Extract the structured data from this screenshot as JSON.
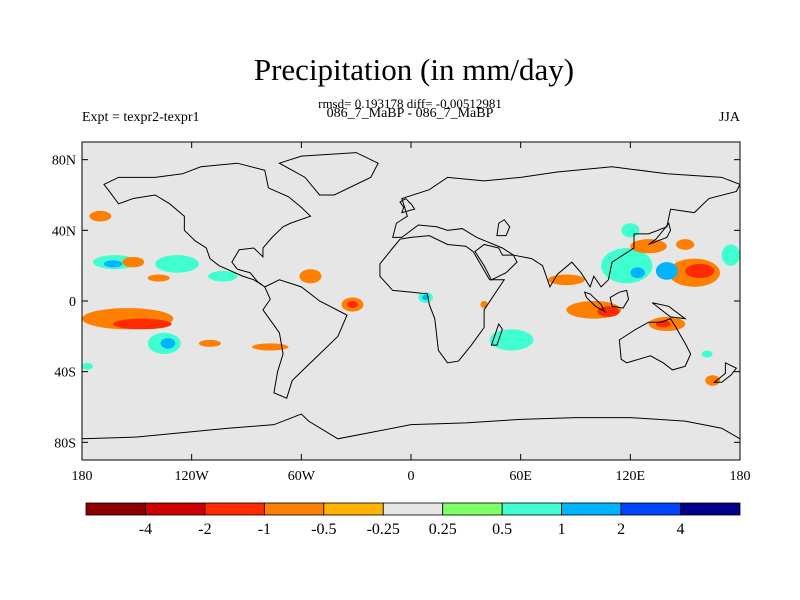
{
  "chart_data": {
    "type": "heatmap",
    "title": "Precipitation (in mm/day)",
    "subtitle": "rmsd= 0.193178 diff= -0.00512981",
    "center_string": "086_7_MaBP - 086_7_MaBP",
    "left_string": "Expt = texpr2-texpr1",
    "right_string": "JJA",
    "x_ticks": [
      "180",
      "120W",
      "60W",
      "0",
      "60E",
      "120E",
      "180"
    ],
    "y_ticks": [
      "80N",
      "40N",
      "0",
      "40S",
      "80S"
    ],
    "lon_range": [
      -180,
      180
    ],
    "lat_range": [
      -90,
      90
    ],
    "background_color": "#e6e6e6",
    "colorbar": {
      "levels": [
        "-4",
        "-2",
        "-1",
        "-0.5",
        "-0.25",
        "0.25",
        "0.5",
        "1",
        "2",
        "4"
      ],
      "colors": [
        "#8b0000",
        "#cc0000",
        "#ff2a00",
        "#ff7f00",
        "#ffb200",
        "#e6e6e6",
        "#7fff66",
        "#3fffd0",
        "#00b4ff",
        "#0044ff",
        "#000088"
      ]
    },
    "anomaly_regions": [
      {
        "lon": -170,
        "lat": 48,
        "rx": 6,
        "ry": 3,
        "level": "-0.5"
      },
      {
        "lon": -162,
        "lat": 22,
        "rx": 12,
        "ry": 4,
        "level": "0.5"
      },
      {
        "lon": -163,
        "lat": 21,
        "rx": 5,
        "ry": 2,
        "level": "1"
      },
      {
        "lon": -152,
        "lat": 22,
        "rx": 6,
        "ry": 3,
        "level": "-0.5"
      },
      {
        "lon": -128,
        "lat": 21,
        "rx": 12,
        "ry": 5,
        "level": "0.5"
      },
      {
        "lon": -103,
        "lat": 14,
        "rx": 8,
        "ry": 3,
        "level": "0.5"
      },
      {
        "lon": -138,
        "lat": 13,
        "rx": 6,
        "ry": 2,
        "level": "-0.5"
      },
      {
        "lon": -155,
        "lat": -10,
        "rx": 25,
        "ry": 6,
        "level": "-0.5"
      },
      {
        "lon": -147,
        "lat": -13,
        "rx": 16,
        "ry": 3,
        "level": "-1"
      },
      {
        "lon": -135,
        "lat": -24,
        "rx": 9,
        "ry": 6,
        "level": "0.5"
      },
      {
        "lon": -133,
        "lat": -24,
        "rx": 4,
        "ry": 3,
        "level": "1"
      },
      {
        "lon": -110,
        "lat": -24,
        "rx": 6,
        "ry": 2,
        "level": "-0.5"
      },
      {
        "lon": -77,
        "lat": -26,
        "rx": 10,
        "ry": 2,
        "level": "-0.5"
      },
      {
        "lon": -55,
        "lat": 14,
        "rx": 6,
        "ry": 4,
        "level": "-0.5"
      },
      {
        "lon": -32,
        "lat": -2,
        "rx": 6,
        "ry": 4,
        "level": "-0.5"
      },
      {
        "lon": -32,
        "lat": -2,
        "rx": 3,
        "ry": 2,
        "level": "-1"
      },
      {
        "lon": 8,
        "lat": 2,
        "rx": 4,
        "ry": 3,
        "level": "0.5"
      },
      {
        "lon": 8,
        "lat": 2,
        "rx": 2,
        "ry": 1.5,
        "level": "1"
      },
      {
        "lon": 40,
        "lat": -2,
        "rx": 2,
        "ry": 2,
        "level": "-0.5"
      },
      {
        "lon": 55,
        "lat": -22,
        "rx": 12,
        "ry": 6,
        "level": "0.5"
      },
      {
        "lon": 100,
        "lat": -5,
        "rx": 15,
        "ry": 5,
        "level": "-0.5"
      },
      {
        "lon": 108,
        "lat": -6,
        "rx": 6,
        "ry": 3,
        "level": "-1"
      },
      {
        "lon": 85,
        "lat": 12,
        "rx": 10,
        "ry": 3,
        "level": "-0.5"
      },
      {
        "lon": 118,
        "lat": 20,
        "rx": 14,
        "ry": 10,
        "level": "0.5"
      },
      {
        "lon": 124,
        "lat": 16,
        "rx": 4,
        "ry": 3,
        "level": "1"
      },
      {
        "lon": 120,
        "lat": 40,
        "rx": 5,
        "ry": 4,
        "level": "0.5"
      },
      {
        "lon": 130,
        "lat": 31,
        "rx": 10,
        "ry": 4,
        "level": "-0.5"
      },
      {
        "lon": 150,
        "lat": 32,
        "rx": 5,
        "ry": 3,
        "level": "-0.5"
      },
      {
        "lon": 155,
        "lat": 16,
        "rx": 14,
        "ry": 8,
        "level": "-0.5"
      },
      {
        "lon": 158,
        "lat": 17,
        "rx": 8,
        "ry": 4,
        "level": "-1"
      },
      {
        "lon": 140,
        "lat": 17,
        "rx": 6,
        "ry": 5,
        "level": "1"
      },
      {
        "lon": 175,
        "lat": 26,
        "rx": 5,
        "ry": 6,
        "level": "0.5"
      },
      {
        "lon": 140,
        "lat": -13,
        "rx": 10,
        "ry": 4,
        "level": "-0.5"
      },
      {
        "lon": 138,
        "lat": -13,
        "rx": 4,
        "ry": 2,
        "level": "-1"
      },
      {
        "lon": 165,
        "lat": -45,
        "rx": 4,
        "ry": 3,
        "level": "-0.5"
      },
      {
        "lon": 162,
        "lat": -30,
        "rx": 3,
        "ry": 2,
        "level": "0.5"
      },
      {
        "lon": -177,
        "lat": -37,
        "rx": 3,
        "ry": 2,
        "level": "0.5"
      }
    ],
    "coastlines": [
      {
        "name": "north-america",
        "points": [
          [
            -168,
            66
          ],
          [
            -160,
            70
          ],
          [
            -140,
            70
          ],
          [
            -125,
            72
          ],
          [
            -115,
            76
          ],
          [
            -95,
            78
          ],
          [
            -80,
            74
          ],
          [
            -78,
            64
          ],
          [
            -67,
            59
          ],
          [
            -60,
            53
          ],
          [
            -55,
            48
          ],
          [
            -66,
            44
          ],
          [
            -70,
            42
          ],
          [
            -76,
            36
          ],
          [
            -81,
            30
          ],
          [
            -81,
            25
          ],
          [
            -86,
            30
          ],
          [
            -94,
            29
          ],
          [
            -98,
            22
          ],
          [
            -95,
            18
          ],
          [
            -88,
            16
          ],
          [
            -84,
            11
          ],
          [
            -80,
            8
          ],
          [
            -86,
            12
          ],
          [
            -92,
            14
          ],
          [
            -105,
            20
          ],
          [
            -110,
            24
          ],
          [
            -112,
            30
          ],
          [
            -118,
            34
          ],
          [
            -124,
            40
          ],
          [
            -124,
            48
          ],
          [
            -132,
            55
          ],
          [
            -140,
            60
          ],
          [
            -152,
            58
          ],
          [
            -160,
            55
          ],
          [
            -165,
            62
          ]
        ]
      },
      {
        "name": "greenland",
        "points": [
          [
            -50,
            60
          ],
          [
            -42,
            60
          ],
          [
            -22,
            70
          ],
          [
            -18,
            78
          ],
          [
            -30,
            84
          ],
          [
            -60,
            82
          ],
          [
            -72,
            78
          ],
          [
            -58,
            70
          ]
        ]
      },
      {
        "name": "south-america",
        "points": [
          [
            -80,
            8
          ],
          [
            -77,
            1
          ],
          [
            -81,
            -5
          ],
          [
            -72,
            -18
          ],
          [
            -70,
            -30
          ],
          [
            -73,
            -40
          ],
          [
            -75,
            -52
          ],
          [
            -68,
            -55
          ],
          [
            -65,
            -45
          ],
          [
            -58,
            -38
          ],
          [
            -48,
            -28
          ],
          [
            -40,
            -20
          ],
          [
            -35,
            -8
          ],
          [
            -50,
            0
          ],
          [
            -60,
            8
          ],
          [
            -72,
            12
          ]
        ]
      },
      {
        "name": "eurasia",
        "points": [
          [
            -10,
            36
          ],
          [
            -8,
            44
          ],
          [
            -2,
            48
          ],
          [
            -5,
            58
          ],
          [
            10,
            63
          ],
          [
            20,
            70
          ],
          [
            40,
            68
          ],
          [
            60,
            70
          ],
          [
            80,
            73
          ],
          [
            110,
            76
          ],
          [
            140,
            72
          ],
          [
            170,
            70
          ],
          [
            180,
            66
          ],
          [
            178,
            62
          ],
          [
            163,
            58
          ],
          [
            155,
            50
          ],
          [
            142,
            52
          ],
          [
            140,
            42
          ],
          [
            130,
            38
          ],
          [
            122,
            38
          ],
          [
            122,
            30
          ],
          [
            110,
            22
          ],
          [
            108,
            12
          ],
          [
            104,
            8
          ],
          [
            100,
            14
          ],
          [
            98,
            8
          ],
          [
            93,
            16
          ],
          [
            88,
            22
          ],
          [
            80,
            15
          ],
          [
            76,
            8
          ],
          [
            72,
            20
          ],
          [
            66,
            24
          ],
          [
            56,
            26
          ],
          [
            50,
            30
          ],
          [
            36,
            36
          ],
          [
            28,
            41
          ],
          [
            20,
            40
          ],
          [
            14,
            42
          ],
          [
            4,
            43
          ],
          [
            -5,
            36
          ]
        ]
      },
      {
        "name": "africa",
        "points": [
          [
            -17,
            21
          ],
          [
            -17,
            14
          ],
          [
            -10,
            6
          ],
          [
            0,
            5
          ],
          [
            9,
            4
          ],
          [
            10,
            -2
          ],
          [
            13,
            -10
          ],
          [
            15,
            -28
          ],
          [
            20,
            -35
          ],
          [
            26,
            -34
          ],
          [
            33,
            -25
          ],
          [
            40,
            -15
          ],
          [
            40,
            -5
          ],
          [
            51,
            12
          ],
          [
            43,
            12
          ],
          [
            34,
            28
          ],
          [
            30,
            31
          ],
          [
            20,
            32
          ],
          [
            10,
            37
          ],
          [
            0,
            36
          ],
          [
            -6,
            35
          ],
          [
            -10,
            30
          ]
        ]
      },
      {
        "name": "australia",
        "points": [
          [
            114,
            -22
          ],
          [
            123,
            -16
          ],
          [
            130,
            -12
          ],
          [
            137,
            -12
          ],
          [
            142,
            -10
          ],
          [
            145,
            -15
          ],
          [
            150,
            -24
          ],
          [
            153,
            -30
          ],
          [
            150,
            -37
          ],
          [
            143,
            -39
          ],
          [
            138,
            -35
          ],
          [
            131,
            -31
          ],
          [
            118,
            -35
          ],
          [
            115,
            -33
          ]
        ]
      },
      {
        "name": "madagascar",
        "points": [
          [
            44,
            -25
          ],
          [
            48,
            -13
          ],
          [
            50,
            -16
          ],
          [
            47,
            -25
          ]
        ]
      },
      {
        "name": "antarctica",
        "points": [
          [
            -180,
            -78
          ],
          [
            -150,
            -77
          ],
          [
            -120,
            -74
          ],
          [
            -100,
            -72
          ],
          [
            -75,
            -70
          ],
          [
            -60,
            -64
          ],
          [
            -56,
            -68
          ],
          [
            -40,
            -78
          ],
          [
            -20,
            -74
          ],
          [
            0,
            -70
          ],
          [
            30,
            -69
          ],
          [
            60,
            -67
          ],
          [
            90,
            -66
          ],
          [
            120,
            -66
          ],
          [
            150,
            -68
          ],
          [
            170,
            -72
          ],
          [
            180,
            -78
          ],
          [
            180,
            -90
          ],
          [
            -180,
            -90
          ]
        ]
      },
      {
        "name": "arabian-peninsula",
        "points": [
          [
            35,
            28
          ],
          [
            40,
            20
          ],
          [
            44,
            12
          ],
          [
            52,
            16
          ],
          [
            58,
            22
          ],
          [
            56,
            26
          ],
          [
            50,
            26
          ],
          [
            48,
            30
          ],
          [
            40,
            32
          ]
        ]
      },
      {
        "name": "japan",
        "points": [
          [
            130,
            32
          ],
          [
            135,
            34
          ],
          [
            140,
            36
          ],
          [
            142,
            40
          ],
          [
            141,
            44
          ],
          [
            138,
            40
          ],
          [
            134,
            35
          ]
        ]
      },
      {
        "name": "borneo",
        "points": [
          [
            109,
            2
          ],
          [
            114,
            5
          ],
          [
            118,
            6
          ],
          [
            119,
            1
          ],
          [
            116,
            -4
          ],
          [
            110,
            -3
          ]
        ]
      },
      {
        "name": "sumatra",
        "points": [
          [
            95,
            5
          ],
          [
            98,
            4
          ],
          [
            104,
            -2
          ],
          [
            106,
            -6
          ],
          [
            101,
            -3
          ],
          [
            96,
            2
          ]
        ]
      },
      {
        "name": "new-guinea",
        "points": [
          [
            132,
            -1
          ],
          [
            141,
            -3
          ],
          [
            150,
            -10
          ],
          [
            142,
            -9
          ],
          [
            137,
            -5
          ]
        ]
      },
      {
        "name": "new-zealand",
        "points": [
          [
            172,
            -35
          ],
          [
            178,
            -38
          ],
          [
            175,
            -42
          ],
          [
            170,
            -46
          ],
          [
            166,
            -46
          ],
          [
            172,
            -41
          ]
        ]
      },
      {
        "name": "uk",
        "points": [
          [
            -5,
            50
          ],
          [
            2,
            52
          ],
          [
            0,
            55
          ],
          [
            -3,
            58
          ],
          [
            -6,
            56
          ],
          [
            -4,
            53
          ]
        ]
      },
      {
        "name": "caspian",
        "points": [
          [
            47,
            37
          ],
          [
            52,
            37
          ],
          [
            54,
            42
          ],
          [
            51,
            46
          ],
          [
            48,
            44
          ]
        ]
      }
    ]
  }
}
